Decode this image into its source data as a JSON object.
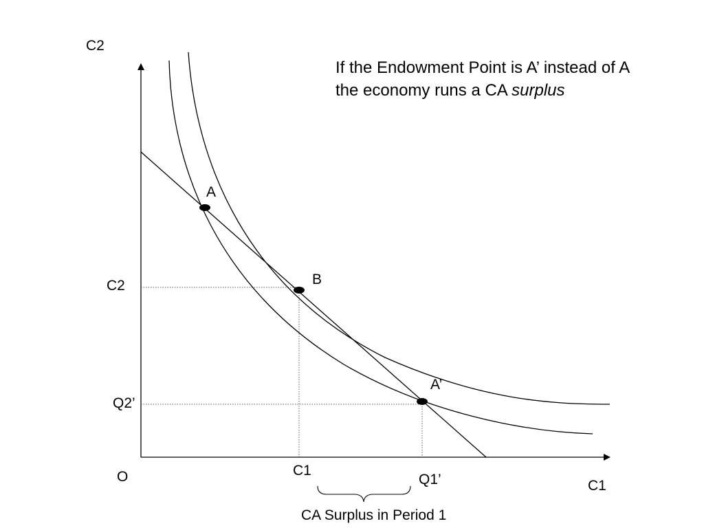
{
  "caption": {
    "line1": "If the Endowment Point is A’ instead of A",
    "line2_plain": "the economy runs a CA ",
    "line2_italic": "surplus"
  },
  "axes": {
    "y_top_label": "C2",
    "x_right_label": "C1",
    "origin_label": "O"
  },
  "ticks": {
    "y_c2": "C2",
    "y_q2": "Q2’",
    "x_c1": "C1",
    "x_q1": "Q1’"
  },
  "points": {
    "a": "A",
    "b": "B",
    "a_prime": "A’"
  },
  "brace_label": "CA Surplus in Period 1"
}
